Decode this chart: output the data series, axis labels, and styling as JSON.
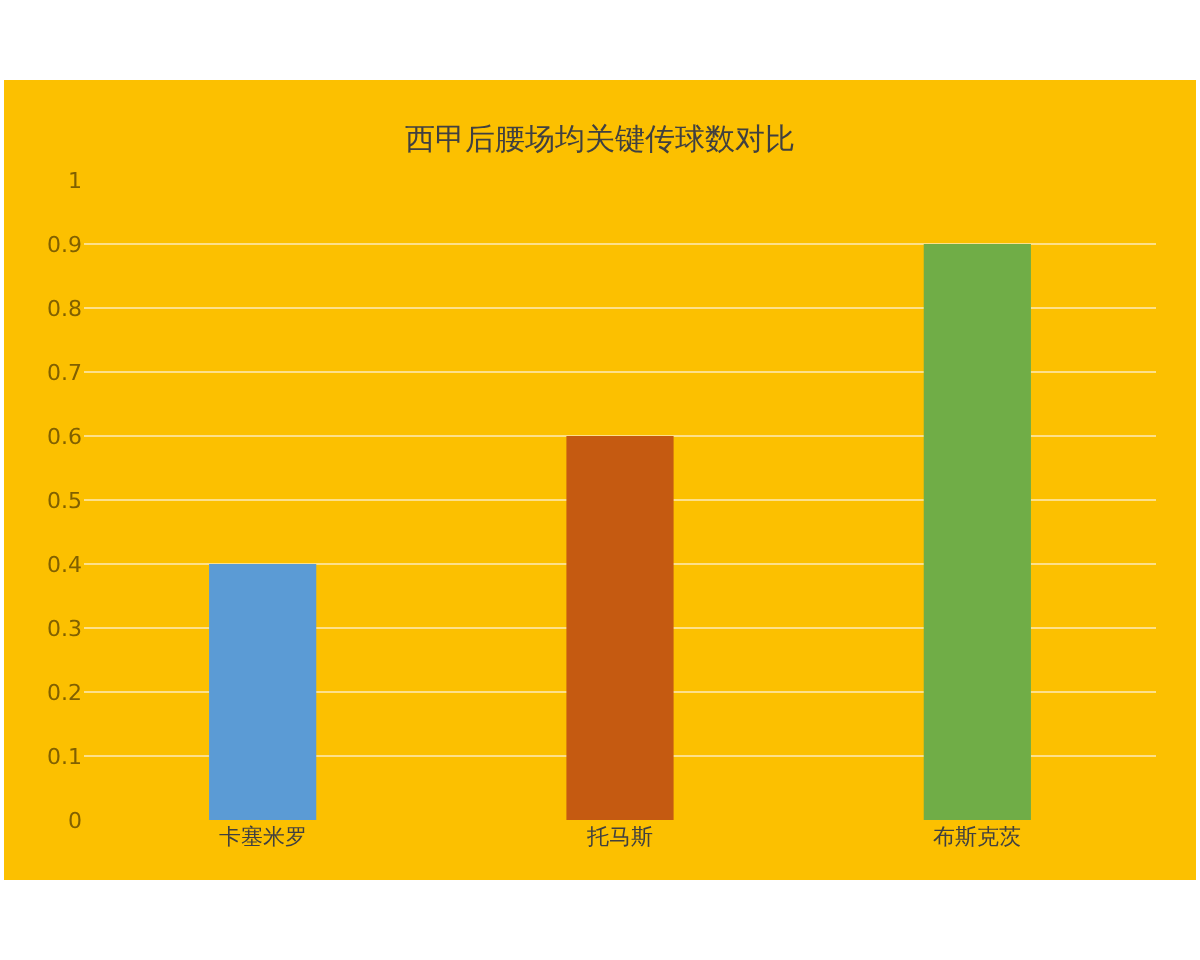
{
  "chart_data": {
    "type": "bar",
    "title": "西甲后腰场均关键传球数对比",
    "categories": [
      "卡塞米罗",
      "托马斯",
      "布斯克茨"
    ],
    "values": [
      0.4,
      0.6,
      0.9
    ],
    "colors": [
      "#5b9bd5",
      "#c55a11",
      "#70ad47"
    ],
    "ylim": [
      0,
      1
    ],
    "yticks": [
      0,
      0.1,
      0.2,
      0.3,
      0.4,
      0.5,
      0.6,
      0.7,
      0.8,
      0.9,
      1
    ],
    "grid": "y"
  }
}
